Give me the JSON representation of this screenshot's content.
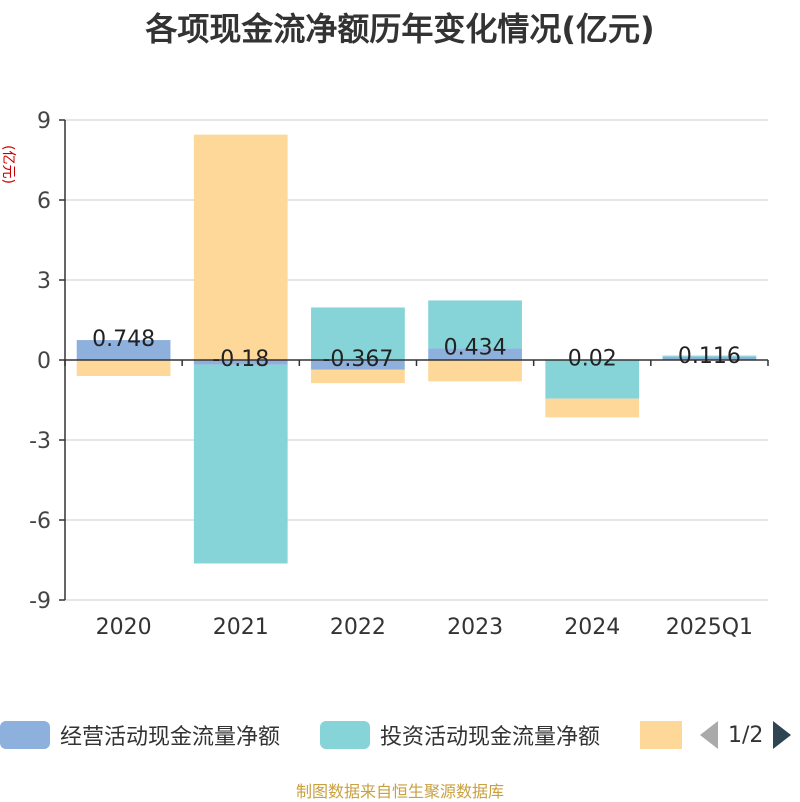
{
  "title": "各项现金流净额历年变化情况(亿元)",
  "source": "制图数据来自恒生聚源数据库",
  "legend_pager": "1/2",
  "chart_data": {
    "type": "bar",
    "stacked": true,
    "title": "各项现金流净额历年变化情况(亿元)",
    "ylabel": "(亿元)",
    "ylim": [
      -9,
      9
    ],
    "yticks": [
      "9",
      "6",
      "3",
      "0",
      "-3",
      "-6",
      "-9"
    ],
    "categories": [
      "2020",
      "2021",
      "2022",
      "2023",
      "2024",
      "2025Q1"
    ],
    "grid": true,
    "legend_position": "bottom",
    "series": [
      {
        "name": "经营活动现金流量净额",
        "color": "#8eb0dd",
        "values": [
          0.748,
          -0.18,
          -0.367,
          0.434,
          0.02,
          0.116
        ],
        "data_labels": [
          "0.748",
          "-0.18",
          "-0.367",
          "0.434",
          "0.02",
          "0.116"
        ]
      },
      {
        "name": "投资活动现金流量净额",
        "color": "#87d4d8",
        "values": [
          0.0,
          -7.45,
          1.97,
          1.8,
          -1.45,
          0.05
        ]
      },
      {
        "name": "",
        "color": "#fed898",
        "values": [
          -0.6,
          8.45,
          -0.5,
          -0.8,
          -0.7,
          0.0
        ]
      }
    ]
  }
}
